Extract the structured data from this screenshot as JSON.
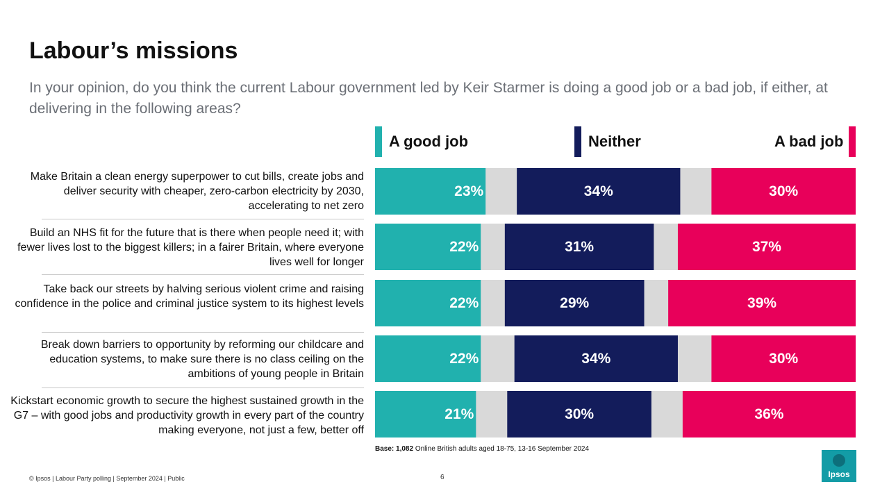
{
  "title": "Labour’s missions",
  "subtitle": "In your opinion, do you think the current Labour government led by Keir Starmer is doing a good job or a bad job, if either, at delivering in the following areas?",
  "colors": {
    "good": "#21b1ae",
    "neither": "#131c5b",
    "bad": "#e8005a",
    "dont_know": "#d9d9d9"
  },
  "chart_data": {
    "type": "bar",
    "orientation": "horizontal-stacked",
    "series_names": [
      "A good job",
      "Neither",
      "A bad job"
    ],
    "categories": [
      "Make Britain a clean energy superpower to cut bills, create jobs and deliver security with cheaper, zero-carbon electricity by 2030, accelerating to net zero",
      "Build an NHS fit for the future that is there when people need it; with fewer lives lost to the biggest killers; in a fairer Britain, where everyone lives well for longer",
      "Take back our streets by halving serious violent crime and raising confidence in the police and criminal justice system to its highest levels",
      "Break down barriers to opportunity by reforming our childcare and education systems, to make sure there is no class ceiling on the ambitions of young people in Britain",
      "Kickstart economic growth to secure the highest sustained growth in the G7 – with good jobs and productivity growth in every part of the country making everyone, not just a few, better off"
    ],
    "rows": [
      {
        "good": 23,
        "neither": 34,
        "bad": 30,
        "good_label": "23%",
        "neither_label": "34%",
        "bad_label": "30%"
      },
      {
        "good": 22,
        "neither": 31,
        "bad": 37,
        "good_label": "22%",
        "neither_label": "31%",
        "bad_label": "37%"
      },
      {
        "good": 22,
        "neither": 29,
        "bad": 39,
        "good_label": "22%",
        "neither_label": "29%",
        "bad_label": "39%"
      },
      {
        "good": 22,
        "neither": 34,
        "bad": 30,
        "good_label": "22%",
        "neither_label": "34%",
        "bad_label": "30%"
      },
      {
        "good": 21,
        "neither": 30,
        "bad": 36,
        "good_label": "21%",
        "neither_label": "30%",
        "bad_label": "36%"
      }
    ],
    "xlim": [
      0,
      100
    ]
  },
  "row_labels": [
    "Make Britain a clean energy superpower to cut bills, create jobs and deliver security with cheaper, zero-carbon electricity by 2030, accelerating to net zero",
    "Build an NHS fit for the future that is there when people need it; with fewer lives lost to the biggest killers; in a fairer Britain, where everyone lives well for longer",
    "Take back our streets by halving serious violent crime and raising confidence in the police and criminal justice system to its highest levels",
    "Break down barriers to opportunity by reforming our childcare and education systems, to make sure there is no class ceiling on the ambitions of young people in Britain",
    "Kickstart economic growth to secure the highest sustained growth in the G7 – with good jobs and productivity growth in every part of the country making everyone, not just a few, better off"
  ],
  "legend": {
    "good": "A good job",
    "neither": "Neither",
    "bad": "A bad job"
  },
  "base_note": {
    "label": "Base:",
    "count": "1,082",
    "text": "Online British adults aged 18-75, 13-16 September 2024"
  },
  "footer": "© Ipsos | Labour Party polling | September 2024 | Public",
  "page_number": "6",
  "logo_text": "Ipsos"
}
